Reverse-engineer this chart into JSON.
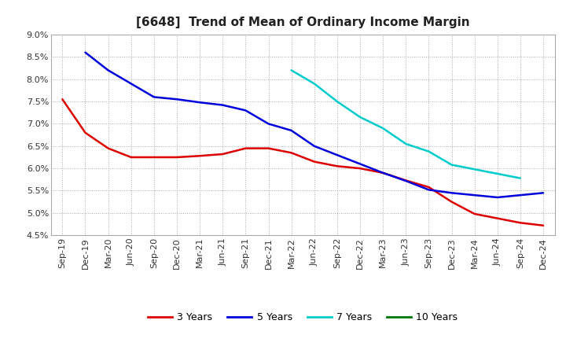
{
  "title": "[6648]  Trend of Mean of Ordinary Income Margin",
  "ylim": [
    0.045,
    0.09
  ],
  "yticks": [
    0.045,
    0.05,
    0.055,
    0.06,
    0.065,
    0.07,
    0.075,
    0.08,
    0.085,
    0.09
  ],
  "x_labels": [
    "Sep-19",
    "Dec-19",
    "Mar-20",
    "Jun-20",
    "Sep-20",
    "Dec-20",
    "Mar-21",
    "Jun-21",
    "Sep-21",
    "Dec-21",
    "Mar-22",
    "Jun-22",
    "Sep-22",
    "Dec-22",
    "Mar-23",
    "Jun-23",
    "Sep-23",
    "Dec-23",
    "Mar-24",
    "Jun-24",
    "Sep-24",
    "Dec-24"
  ],
  "series_3y": [
    0.0755,
    0.068,
    0.0645,
    0.0625,
    0.0625,
    0.0625,
    0.0628,
    0.0632,
    0.0645,
    0.0645,
    0.0635,
    0.0615,
    0.0605,
    0.06,
    0.059,
    0.0573,
    0.0558,
    0.0525,
    0.0498,
    0.0488,
    0.0478,
    0.0472
  ],
  "series_5y": [
    null,
    0.086,
    0.082,
    0.079,
    0.076,
    0.0755,
    0.0748,
    0.0742,
    0.073,
    0.07,
    0.0685,
    0.065,
    0.063,
    0.061,
    0.059,
    0.0572,
    0.0552,
    0.0545,
    0.054,
    0.0535,
    0.054,
    0.0545
  ],
  "series_7y": [
    null,
    null,
    null,
    null,
    null,
    null,
    null,
    null,
    null,
    null,
    0.082,
    0.079,
    0.075,
    0.0715,
    0.069,
    0.0655,
    0.0638,
    0.0608,
    0.0598,
    0.0588,
    0.0578,
    null
  ],
  "series_10y": [
    null,
    null,
    null,
    null,
    null,
    null,
    null,
    null,
    null,
    null,
    null,
    null,
    null,
    null,
    null,
    null,
    null,
    null,
    null,
    null,
    null,
    null
  ],
  "color_3y": "#dd0000",
  "color_5y": "#0000dd",
  "color_7y": "#00cccc",
  "color_10y": "#007700",
  "bg_color": "#ffffff",
  "plot_bg": "#ffffff",
  "grid_color": "#aaaaaa",
  "title_fontsize": 11,
  "axis_fontsize": 8,
  "legend_fontsize": 9
}
